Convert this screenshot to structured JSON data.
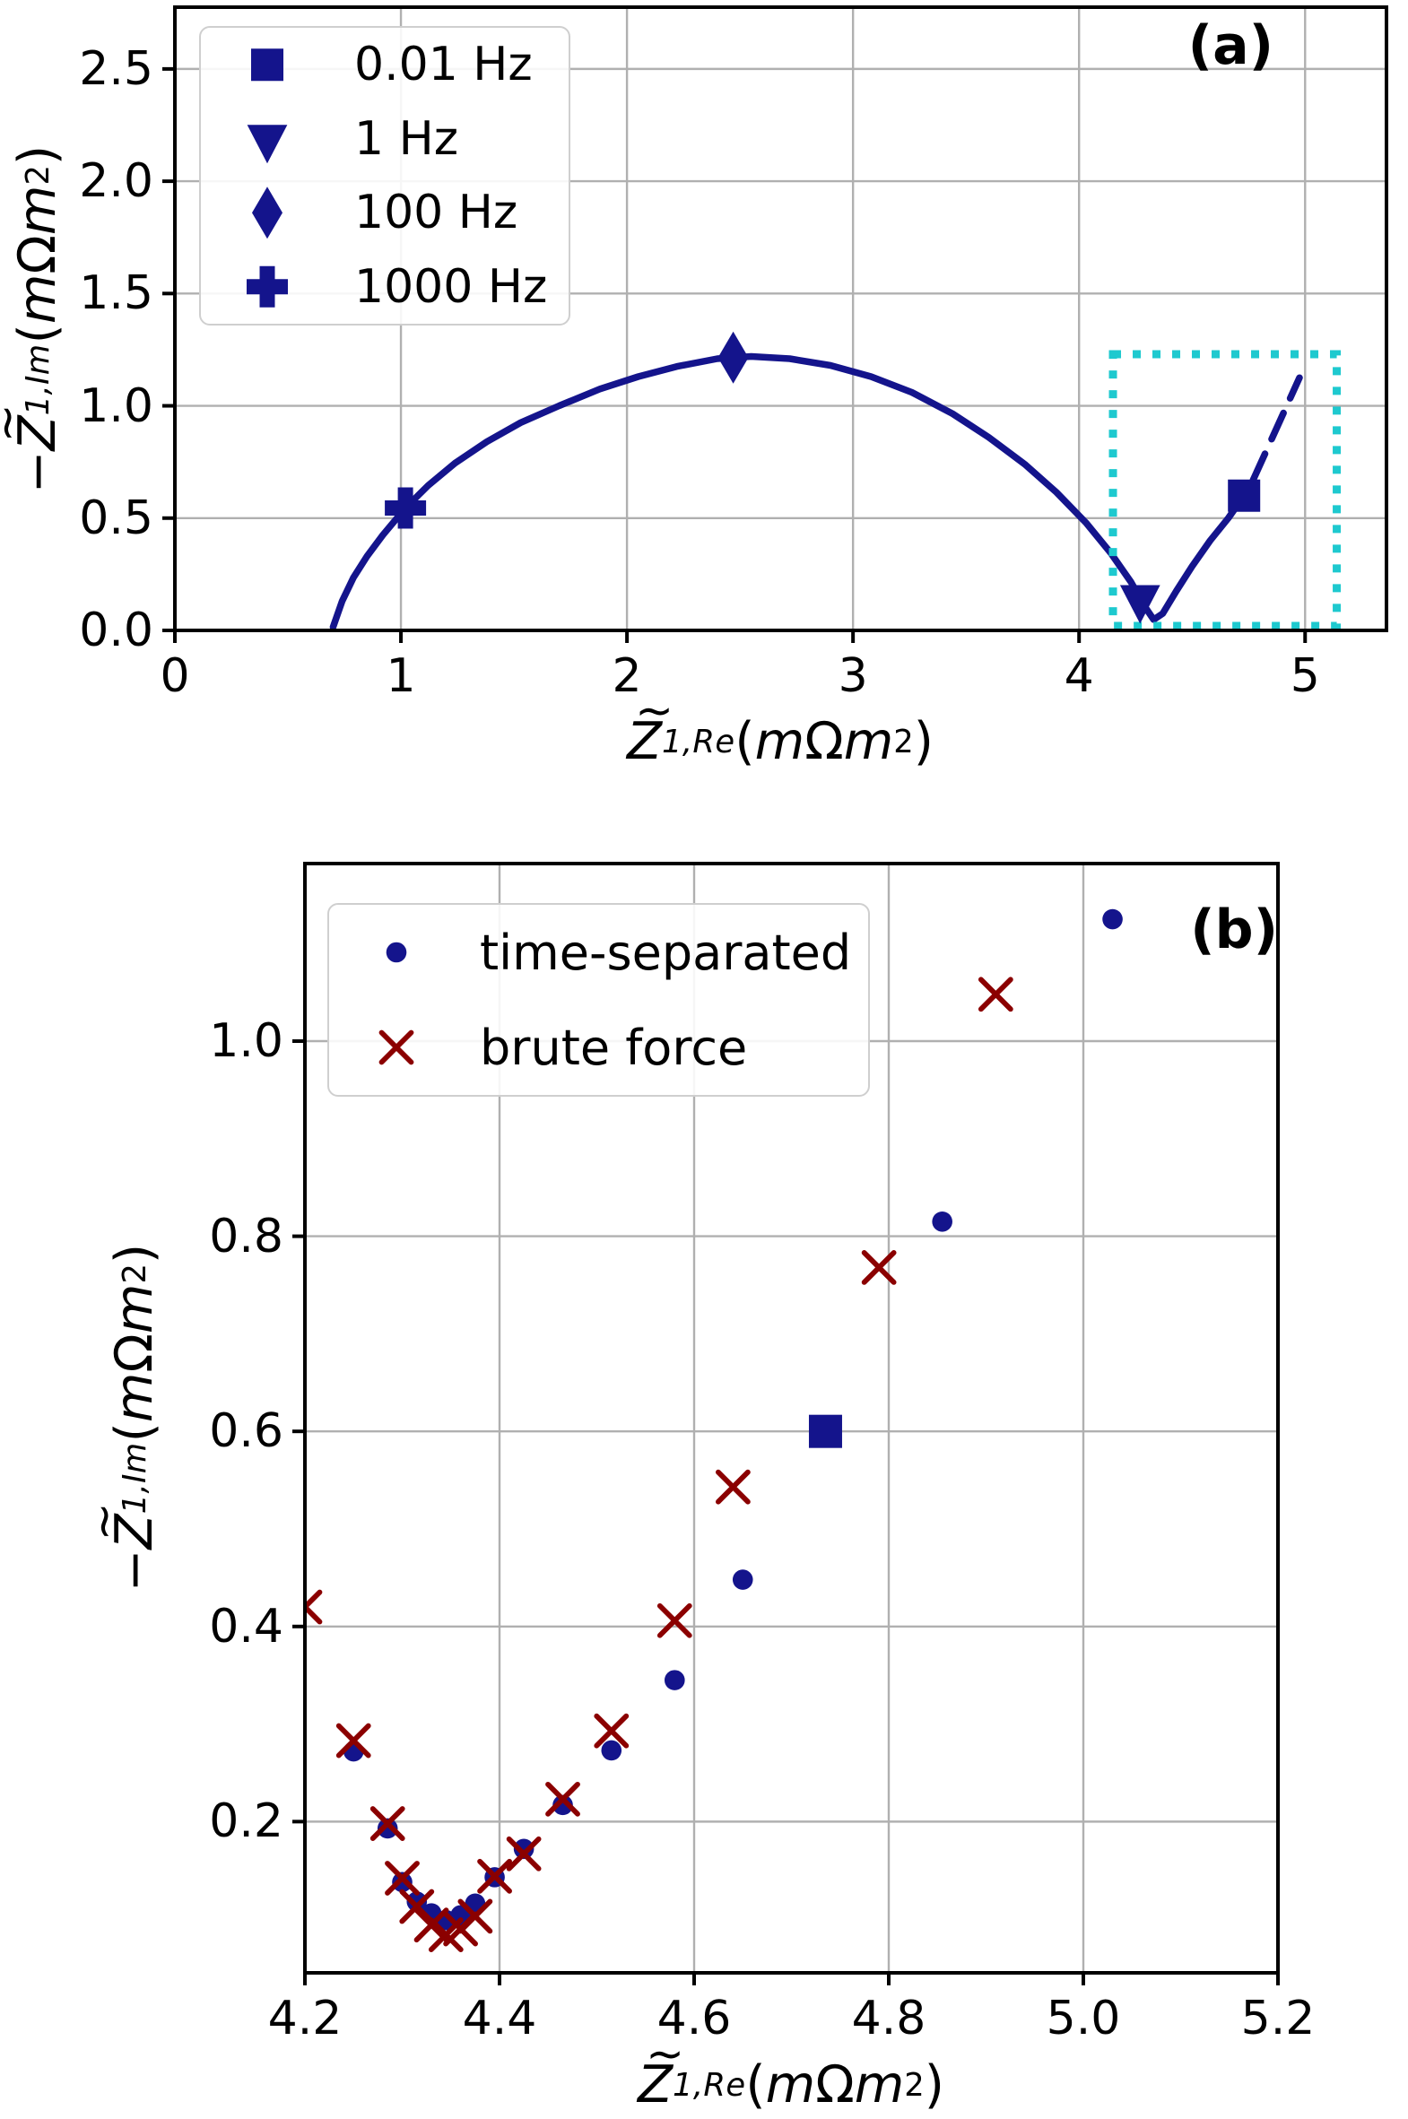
{
  "figure": {
    "background": "#ffffff"
  },
  "colors": {
    "navy": "#14148c",
    "darkred": "#8b0000",
    "inset_box": "#1ec9cf",
    "grid": "#b0b0b0",
    "spine": "#000000",
    "legend_border": "#cfcfcf",
    "text": "#000000"
  },
  "chart_data": [
    {
      "id": "a",
      "type": "line",
      "panel_label": "(a)",
      "xlim": [
        0,
        5.36
      ],
      "ylim": [
        0,
        2.775
      ],
      "grid": true,
      "xticks": {
        "values": [
          0,
          1,
          2,
          3,
          4,
          5
        ],
        "labels": [
          "0",
          "1",
          "2",
          "3",
          "4",
          "5"
        ]
      },
      "yticks": {
        "values": [
          0,
          0.5,
          1.0,
          1.5,
          2.0,
          2.5
        ],
        "labels": [
          "0.0",
          "0.5",
          "1.0",
          "1.5",
          "2.0",
          "2.5"
        ]
      },
      "xlabel_tokens": [
        {
          "t": "tilde",
          "v": "Z"
        },
        {
          "t": "sub",
          "v": "1,Re"
        },
        {
          "t": "plain",
          "v": "("
        },
        {
          "t": "ital",
          "v": "m"
        },
        {
          "t": "plain",
          "v": "Ω"
        },
        {
          "t": "ital",
          "v": " m"
        },
        {
          "t": "sup",
          "v": "2"
        },
        {
          "t": "plain",
          "v": ")"
        }
      ],
      "ylabel_tokens": [
        {
          "t": "plain",
          "v": "−"
        },
        {
          "t": "tilde",
          "v": "Z"
        },
        {
          "t": "sub",
          "v": "1,Im"
        },
        {
          "t": "plain",
          "v": "("
        },
        {
          "t": "ital",
          "v": "m"
        },
        {
          "t": "plain",
          "v": "Ω"
        },
        {
          "t": "ital",
          "v": " m"
        },
        {
          "t": "sup",
          "v": "2"
        },
        {
          "t": "plain",
          "v": ")"
        }
      ],
      "legend": {
        "position": "upper-left",
        "entries": [
          {
            "marker": "square",
            "label": "0.01 Hz"
          },
          {
            "marker": "triangle-down",
            "label": "1 Hz"
          },
          {
            "marker": "diamond",
            "label": "100 Hz"
          },
          {
            "marker": "plus",
            "label": "1000 Hz"
          }
        ]
      },
      "series": [
        {
          "name": "impedance-curve",
          "style": "solid",
          "color": "navy",
          "points": [
            [
              0.7,
              0.015
            ],
            [
              0.74,
              0.13
            ],
            [
              0.79,
              0.235
            ],
            [
              0.85,
              0.33
            ],
            [
              0.92,
              0.425
            ],
            [
              1.02,
              0.545
            ],
            [
              1.12,
              0.645
            ],
            [
              1.24,
              0.745
            ],
            [
              1.38,
              0.84
            ],
            [
              1.53,
              0.925
            ],
            [
              1.7,
              1.0
            ],
            [
              1.88,
              1.075
            ],
            [
              2.05,
              1.13
            ],
            [
              2.22,
              1.175
            ],
            [
              2.4,
              1.21
            ],
            [
              2.55,
              1.22
            ],
            [
              2.72,
              1.21
            ],
            [
              2.9,
              1.18
            ],
            [
              3.08,
              1.13
            ],
            [
              3.26,
              1.06
            ],
            [
              3.44,
              0.965
            ],
            [
              3.6,
              0.86
            ],
            [
              3.76,
              0.74
            ],
            [
              3.9,
              0.615
            ],
            [
              4.03,
              0.48
            ],
            [
              4.14,
              0.345
            ],
            [
              4.23,
              0.215
            ],
            [
              4.295,
              0.1
            ],
            [
              4.33,
              0.048
            ],
            [
              4.37,
              0.075
            ],
            [
              4.43,
              0.175
            ],
            [
              4.5,
              0.285
            ],
            [
              4.58,
              0.4
            ],
            [
              4.66,
              0.5
            ],
            [
              4.73,
              0.6
            ]
          ]
        },
        {
          "name": "extrapolation-dashed",
          "style": "dashed",
          "color": "navy",
          "points": [
            [
              4.77,
              0.67
            ],
            [
              4.975,
              1.125
            ]
          ]
        }
      ],
      "frequency_markers": [
        {
          "shape": "plus",
          "freq": "1000 Hz",
          "x": 1.02,
          "y": 0.545
        },
        {
          "shape": "diamond",
          "freq": "100 Hz",
          "x": 2.47,
          "y": 1.215
        },
        {
          "shape": "triangle-down",
          "freq": "1 Hz",
          "x": 4.27,
          "y": 0.14
        },
        {
          "shape": "square",
          "freq": "0.01 Hz",
          "x": 4.73,
          "y": 0.6
        }
      ],
      "inset_box": {
        "x0": 4.15,
        "x1": 5.14,
        "y0": 0.02,
        "y1": 1.23,
        "style": "dotted",
        "color": "inset_box"
      }
    },
    {
      "id": "b",
      "type": "scatter",
      "panel_label": "(b)",
      "xlim": [
        4.2,
        5.2
      ],
      "ylim": [
        0.045,
        1.182
      ],
      "grid": true,
      "xticks": {
        "values": [
          4.2,
          4.4,
          4.6,
          4.8,
          5.0,
          5.2
        ],
        "labels": [
          "4.2",
          "4.4",
          "4.6",
          "4.8",
          "5.0",
          "5.2"
        ]
      },
      "yticks": {
        "values": [
          0.2,
          0.4,
          0.6,
          0.8,
          1.0
        ],
        "labels": [
          "0.2",
          "0.4",
          "0.6",
          "0.8",
          "1.0"
        ]
      },
      "xlabel_tokens": [
        {
          "t": "tilde",
          "v": "Z"
        },
        {
          "t": "sub",
          "v": "1,Re"
        },
        {
          "t": "plain",
          "v": "("
        },
        {
          "t": "ital",
          "v": "m"
        },
        {
          "t": "plain",
          "v": "Ω"
        },
        {
          "t": "ital",
          "v": " m"
        },
        {
          "t": "sup",
          "v": "2"
        },
        {
          "t": "plain",
          "v": ")"
        }
      ],
      "ylabel_tokens": [
        {
          "t": "plain",
          "v": "−"
        },
        {
          "t": "tilde",
          "v": "Z"
        },
        {
          "t": "sub",
          "v": "1,Im"
        },
        {
          "t": "plain",
          "v": "("
        },
        {
          "t": "ital",
          "v": "m"
        },
        {
          "t": "plain",
          "v": "Ω"
        },
        {
          "t": "ital",
          "v": " m"
        },
        {
          "t": "sup",
          "v": "2"
        },
        {
          "t": "plain",
          "v": ")"
        }
      ],
      "legend": {
        "position": "upper-left",
        "entries": [
          {
            "marker": "circle",
            "label": "time-separated"
          },
          {
            "marker": "x",
            "label": "brute force"
          }
        ]
      },
      "series": [
        {
          "name": "time-separated",
          "marker": "circle",
          "color": "navy",
          "points": [
            [
              4.25,
              0.272
            ],
            [
              4.285,
              0.193
            ],
            [
              4.3,
              0.138
            ],
            [
              4.315,
              0.118
            ],
            [
              4.33,
              0.106
            ],
            [
              4.345,
              0.099
            ],
            [
              4.36,
              0.104
            ],
            [
              4.375,
              0.116
            ],
            [
              4.395,
              0.143
            ],
            [
              4.425,
              0.172
            ],
            [
              4.465,
              0.217
            ],
            [
              4.515,
              0.273
            ],
            [
              4.58,
              0.345
            ],
            [
              4.65,
              0.448
            ],
            [
              4.855,
              0.815
            ],
            [
              5.03,
              1.125
            ]
          ]
        },
        {
          "name": "brute force",
          "marker": "x",
          "color": "darkred",
          "points": [
            [
              4.2,
              0.42
            ],
            [
              4.25,
              0.283
            ],
            [
              4.285,
              0.198
            ],
            [
              4.3,
              0.142
            ],
            [
              4.315,
              0.113
            ],
            [
              4.33,
              0.094
            ],
            [
              4.345,
              0.084
            ],
            [
              4.36,
              0.09
            ],
            [
              4.375,
              0.103
            ],
            [
              4.395,
              0.144
            ],
            [
              4.425,
              0.167
            ],
            [
              4.465,
              0.223
            ],
            [
              4.515,
              0.293
            ],
            [
              4.58,
              0.406
            ],
            [
              4.64,
              0.543
            ],
            [
              4.79,
              0.768
            ],
            [
              4.91,
              1.048
            ]
          ]
        }
      ],
      "frequency_markers": [
        {
          "shape": "square",
          "freq": "0.01 Hz",
          "x": 4.735,
          "y": 0.6
        }
      ]
    }
  ]
}
